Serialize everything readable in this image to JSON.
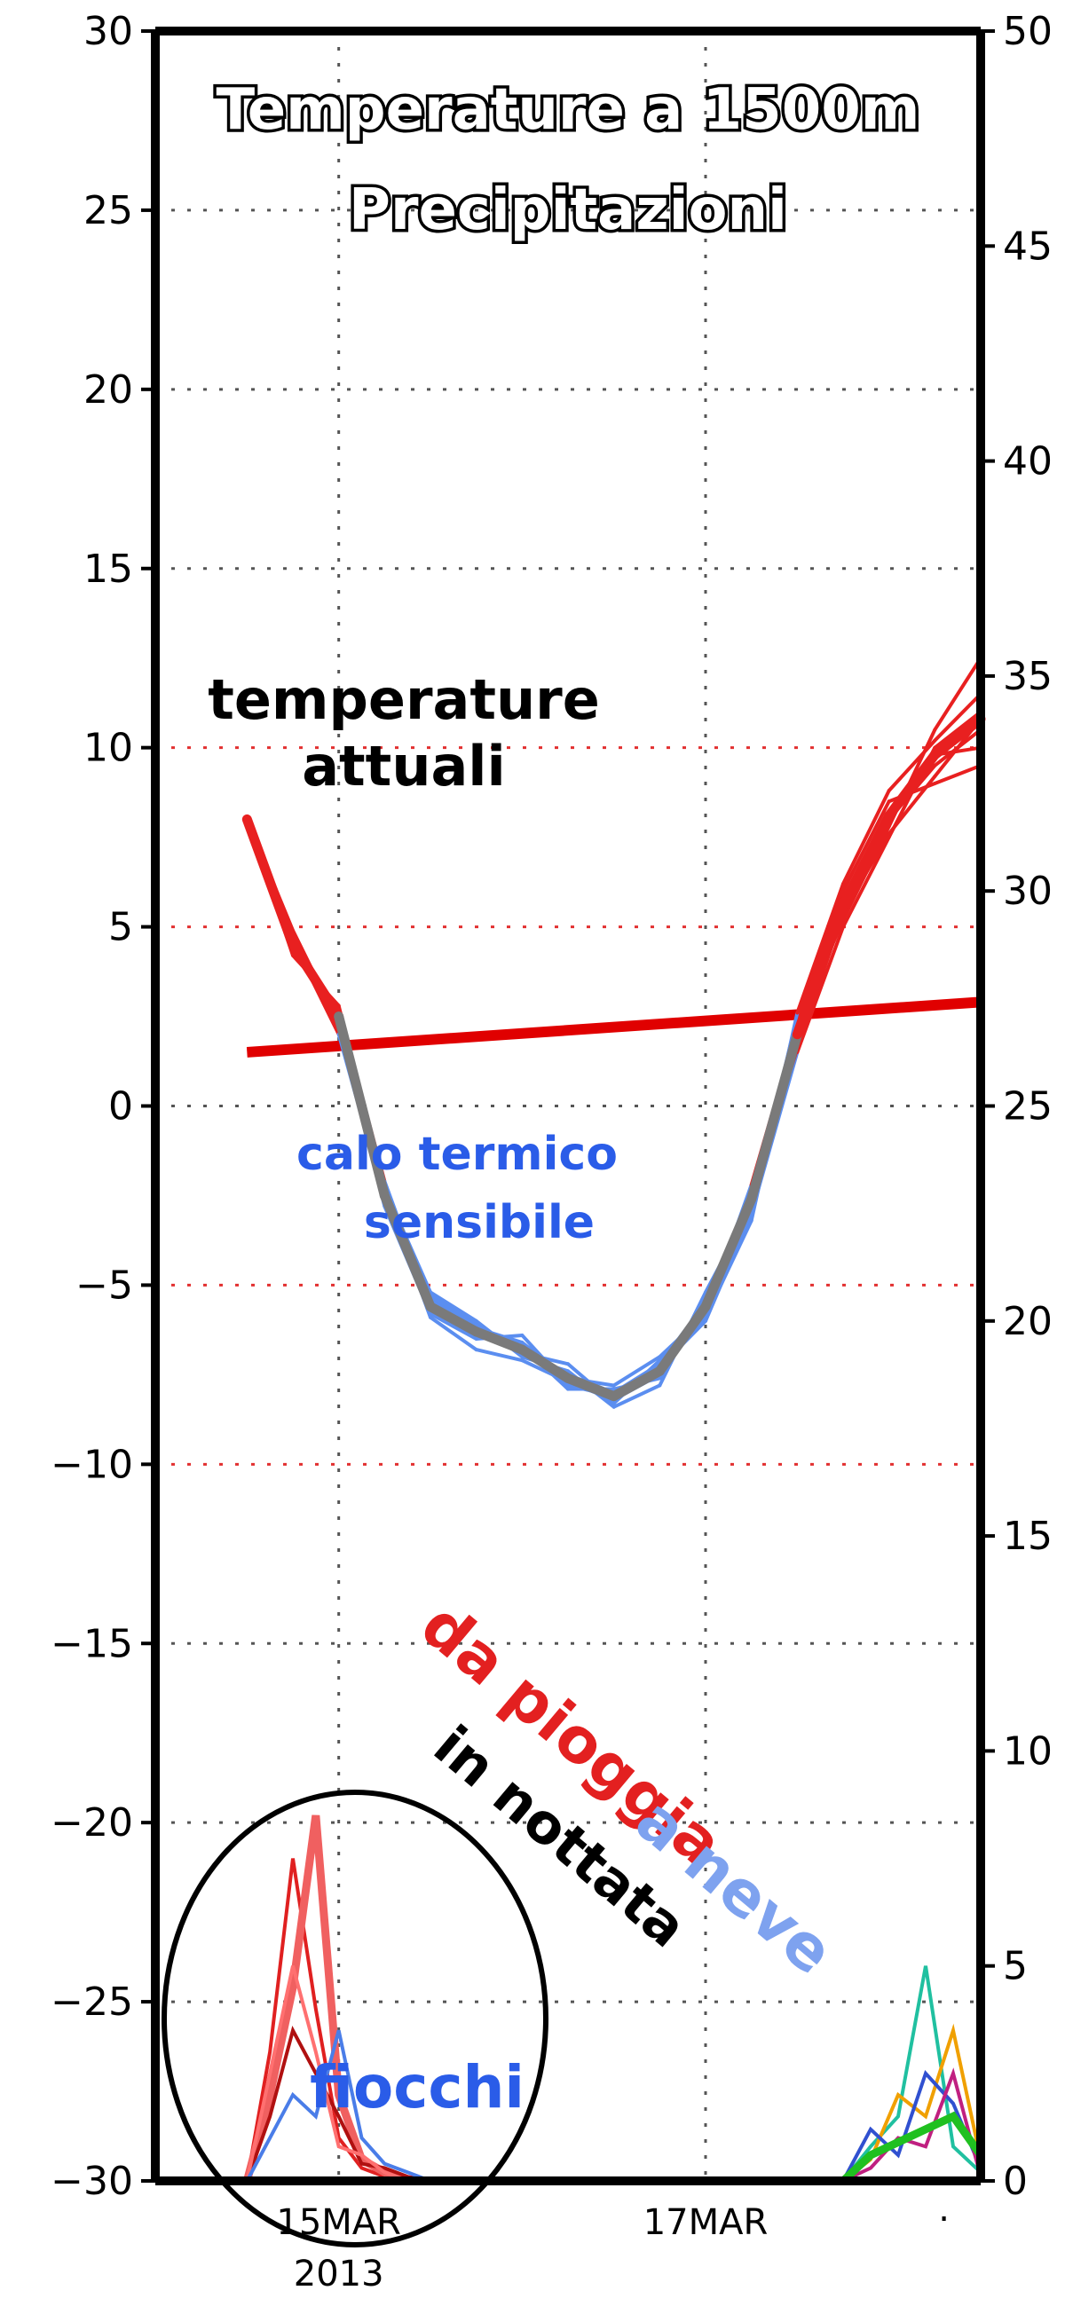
{
  "chart_data": {
    "type": "line",
    "title": "Temperature a 1500m",
    "subtitle": "Precipitazioni",
    "x_tick_labels": [
      "15MAR",
      "2013",
      "17MAR",
      "."
    ],
    "y_left": {
      "ylim": [
        -30,
        30
      ],
      "ticks": [
        "30",
        "25",
        "20",
        "15",
        "10",
        "5",
        "0",
        "−5",
        "−10",
        "−15",
        "−20",
        "−25",
        "−30"
      ]
    },
    "y_right": {
      "ylim": [
        0,
        50
      ],
      "ticks": [
        "50",
        "45",
        "40",
        "35",
        "30",
        "25",
        "20",
        "15",
        "10",
        "5",
        "0"
      ]
    },
    "grid": true,
    "annotations": {
      "current": [
        "temperature",
        "attuali"
      ],
      "drop": [
        "calo termico",
        "sensibile"
      ],
      "flakes": "fiocchi",
      "rain_to_snow": [
        "da pioggia",
        "a neve"
      ],
      "night": "in nottata"
    },
    "colors": {
      "warm": "#e82020",
      "cold": "#5b8ef0",
      "mean": "#7a7a7a",
      "climatology": "#e00000"
    },
    "x_days": [
      14.5,
      14.75,
      15.0,
      15.25,
      15.5,
      15.75,
      16.0,
      16.25,
      16.5,
      16.75,
      17.0,
      17.25,
      17.5,
      17.75,
      18.0,
      18.25,
      18.5
    ],
    "series": [
      {
        "values": [
          8.0,
          4.5,
          2.5,
          -2.5,
          -5.5,
          -6.3,
          -6.8,
          -7.5,
          -8.0,
          -7.2,
          -5.5,
          -2.5,
          2.0,
          5.5,
          8.0,
          9.5,
          10.5
        ]
      },
      {
        "values": [
          8.0,
          4.8,
          2.2,
          -2.8,
          -5.8,
          -6.5,
          -6.4,
          -7.8,
          -8.1,
          -7.3,
          -6.0,
          -3.0,
          1.5,
          5.0,
          7.5,
          10.0,
          11.0
        ]
      },
      {
        "values": [
          8.0,
          4.2,
          2.8,
          -2.3,
          -5.2,
          -6.0,
          -7.0,
          -7.4,
          -8.4,
          -7.8,
          -5.2,
          -2.8,
          2.5,
          6.0,
          8.5,
          9.0,
          9.5
        ]
      },
      {
        "values": [
          8.0,
          4.6,
          2.0,
          -2.6,
          -5.4,
          -6.2,
          -6.6,
          -7.6,
          -7.8,
          -7.0,
          -5.8,
          -2.2,
          2.2,
          5.2,
          7.8,
          10.5,
          12.5
        ]
      },
      {
        "values": [
          8.0,
          4.4,
          2.6,
          -2.4,
          -5.9,
          -6.8,
          -7.1,
          -7.7,
          -8.2,
          -7.5,
          -5.4,
          -2.6,
          1.8,
          5.8,
          8.2,
          9.8,
          10.0
        ]
      },
      {
        "values": [
          8.0,
          4.9,
          2.3,
          -2.7,
          -5.3,
          -6.1,
          -6.9,
          -7.2,
          -8.3,
          -7.1,
          -5.9,
          -3.2,
          2.6,
          6.2,
          8.8,
          10.2,
          11.5
        ]
      },
      {
        "values": [
          8.0,
          4.3,
          2.7,
          -2.1,
          -5.6,
          -6.4,
          -6.7,
          -7.9,
          -7.9,
          -7.6,
          -5.6,
          -2.4,
          1.6,
          5.4,
          7.6,
          9.2,
          10.8
        ]
      }
    ],
    "mean_series": {
      "values": [
        8.0,
        4.5,
        2.5,
        -2.5,
        -5.6,
        -6.3,
        -6.8,
        -7.6,
        -8.1,
        -7.4,
        -5.6,
        -2.6,
        2.0,
        5.6,
        8.1,
        9.8,
        10.8
      ]
    },
    "climatology": {
      "x": [
        14.5,
        18.5
      ],
      "values": [
        1.5,
        2.9
      ]
    },
    "precip_x": [
      14.5,
      14.625,
      14.75,
      14.875,
      15.0,
      15.125,
      15.25,
      15.375,
      15.5
    ],
    "precip_series": [
      {
        "values": [
          0,
          3.0,
          7.5,
          4.0,
          1.0,
          0.3,
          0.1,
          0,
          0
        ]
      },
      {
        "values": [
          0,
          2.0,
          4.5,
          8.5,
          2.0,
          0.5,
          0.2,
          0,
          0
        ]
      },
      {
        "values": [
          0,
          1.5,
          3.5,
          2.5,
          1.5,
          0.4,
          0.3,
          0.1,
          0
        ]
      },
      {
        "values": [
          0,
          2.5,
          5.0,
          3.0,
          0.8,
          0.6,
          0.2,
          0,
          0
        ]
      },
      {
        "values": [
          0,
          1.0,
          2.0,
          1.5,
          3.5,
          1.0,
          0.4,
          0.2,
          0
        ]
      }
    ],
    "precip_x_late": [
      17.75,
      17.9,
      18.05,
      18.2,
      18.35,
      18.5
    ],
    "precip_late_series": [
      {
        "values": [
          0,
          0.8,
          1.5,
          5.0,
          0.8,
          0.2
        ]
      },
      {
        "values": [
          0,
          0.5,
          2.0,
          1.5,
          3.5,
          0.5
        ]
      },
      {
        "values": [
          0,
          1.2,
          0.6,
          2.5,
          1.8,
          0.3
        ]
      },
      {
        "values": [
          0,
          0.3,
          1.0,
          0.8,
          2.5,
          0.1
        ]
      },
      {
        "values": [
          0,
          0.6,
          0.9,
          1.2,
          1.5,
          0.6
        ]
      }
    ]
  }
}
